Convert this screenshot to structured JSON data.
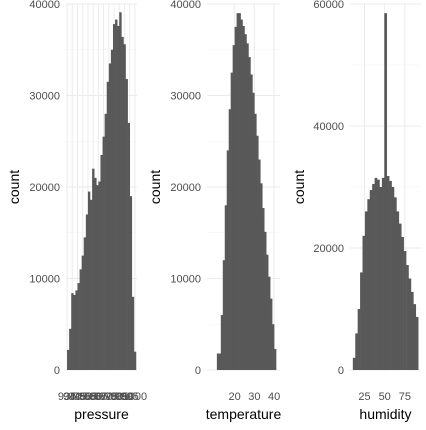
{
  "chart_data": [
    {
      "type": "bar",
      "xlabel": "pressure",
      "ylabel": "count",
      "xlim": [
        934,
        1002
      ],
      "ylim": [
        0,
        40000
      ],
      "x_ticks": [
        935,
        940,
        945,
        950,
        955,
        960,
        965,
        970,
        975,
        980,
        985,
        990,
        995,
        1000
      ],
      "x_tick_labels": [
        "935",
        "940",
        "945",
        "950",
        "955",
        "960",
        "965",
        "970",
        "975",
        "980",
        "985",
        "990",
        "995",
        "1000"
      ],
      "y_ticks": [
        0,
        10000,
        20000,
        30000,
        40000
      ],
      "y_tick_labels": [
        "0",
        "10000",
        "20000",
        "30000",
        "40000"
      ],
      "bins": [
        [
          936,
          2200
        ],
        [
          938,
          4500
        ],
        [
          940,
          8400
        ],
        [
          942,
          8200
        ],
        [
          944,
          8700
        ],
        [
          946,
          9500
        ],
        [
          948,
          11000
        ],
        [
          950,
          12500
        ],
        [
          952,
          14500
        ],
        [
          954,
          17000
        ],
        [
          956,
          19500
        ],
        [
          958,
          18600
        ],
        [
          960,
          22000
        ],
        [
          962,
          21000
        ],
        [
          964,
          20200
        ],
        [
          966,
          20600
        ],
        [
          968,
          23500
        ],
        [
          970,
          25500
        ],
        [
          972,
          28000
        ],
        [
          974,
          31500
        ],
        [
          976,
          33500
        ],
        [
          978,
          35000
        ],
        [
          980,
          37800
        ],
        [
          982,
          38300
        ],
        [
          984,
          37600
        ],
        [
          986,
          39100
        ],
        [
          988,
          36400
        ],
        [
          990,
          35600
        ],
        [
          992,
          31800
        ],
        [
          994,
          27000
        ],
        [
          996,
          19000
        ],
        [
          998,
          8000
        ],
        [
          1000,
          2000
        ]
      ]
    },
    {
      "type": "bar",
      "xlabel": "temperature",
      "ylabel": "count",
      "xlim": [
        6,
        43
      ],
      "ylim": [
        0,
        40000
      ],
      "x_ticks": [
        20,
        30,
        40
      ],
      "x_tick_labels": [
        "20",
        "30",
        "40"
      ],
      "y_ticks": [
        0,
        10000,
        20000,
        30000,
        40000
      ],
      "y_tick_labels": [
        "0",
        "10000",
        "20000",
        "30000",
        "40000"
      ],
      "bins": [
        [
          12,
          1800
        ],
        [
          14,
          6000
        ],
        [
          15,
          12000
        ],
        [
          16,
          18000
        ],
        [
          17,
          24000
        ],
        [
          18,
          28500
        ],
        [
          19,
          32500
        ],
        [
          20,
          35500
        ],
        [
          21,
          37500
        ],
        [
          22,
          39000
        ],
        [
          23,
          38300
        ],
        [
          24,
          37600
        ],
        [
          25,
          36700
        ],
        [
          26,
          35700
        ],
        [
          27,
          34200
        ],
        [
          28,
          32300
        ],
        [
          29,
          30300
        ],
        [
          30,
          28000
        ],
        [
          31,
          25600
        ],
        [
          32,
          23000
        ],
        [
          33,
          20400
        ],
        [
          34,
          17700
        ],
        [
          35,
          15100
        ],
        [
          36,
          12600
        ],
        [
          37,
          10200
        ],
        [
          38,
          7800
        ],
        [
          39,
          5000
        ],
        [
          40,
          2300
        ]
      ]
    },
    {
      "type": "bar",
      "xlabel": "humidity",
      "ylabel": "count",
      "xlim": [
        7,
        95
      ],
      "ylim": [
        0,
        60000
      ],
      "x_ticks": [
        25,
        50,
        75
      ],
      "x_tick_labels": [
        "25",
        "50",
        "75"
      ],
      "y_ticks": [
        0,
        20000,
        40000,
        60000
      ],
      "y_tick_labels": [
        "0",
        "20000",
        "40000",
        "60000"
      ],
      "bins": [
        [
          12,
          2000
        ],
        [
          15,
          6000
        ],
        [
          18,
          10000
        ],
        [
          21,
          16000
        ],
        [
          24,
          22000
        ],
        [
          27,
          26000
        ],
        [
          30,
          28000
        ],
        [
          33,
          29500
        ],
        [
          36,
          30500
        ],
        [
          39,
          31500
        ],
        [
          42,
          31200
        ],
        [
          45,
          30000
        ],
        [
          48,
          31500
        ],
        [
          51,
          58500
        ],
        [
          54,
          31800
        ],
        [
          57,
          31000
        ],
        [
          60,
          30000
        ],
        [
          63,
          28300
        ],
        [
          66,
          26000
        ],
        [
          69,
          24000
        ],
        [
          72,
          21800
        ],
        [
          75,
          19500
        ],
        [
          78,
          17200
        ],
        [
          81,
          15000
        ],
        [
          84,
          12800
        ],
        [
          87,
          10800
        ],
        [
          90,
          8700
        ]
      ]
    }
  ],
  "colors": {
    "bar": "#595959",
    "grid_major": "#ebebeb",
    "grid_minor": "#f3f3f3",
    "tick_text": "#4d4d4d",
    "title_text": "#000000",
    "background": "#ffffff"
  }
}
